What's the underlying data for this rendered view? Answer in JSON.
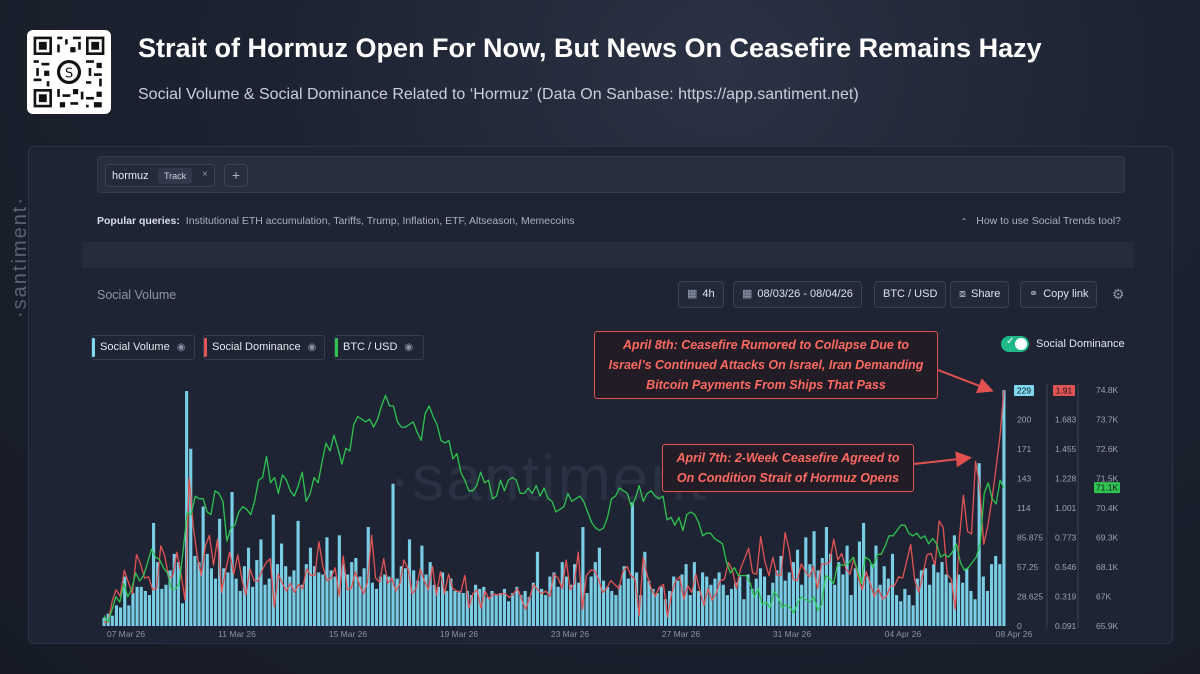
{
  "header": {
    "title": "Strait of Hormuz Open For Now, But News On Ceasefire Remains Hazy",
    "subtitle": "Social Volume & Social Dominance Related to ‘Hormuz’ (Data On Sanbase: https://app.santiment.net)"
  },
  "search": {
    "tag_word": "hormuz",
    "tag_track": "Track",
    "tag_close": "×",
    "add": "+"
  },
  "popular": {
    "label": "Popular queries:",
    "items": "Institutional ETH accumulation, Tariffs, Trump, Inflation, ETF, Altseason, Memecoins"
  },
  "howto": "How to use Social Trends tool?",
  "toolbar": {
    "section_label": "Social Volume",
    "interval": "4h",
    "date_range": "08/03/26 - 08/04/26",
    "pair": "BTC / USD",
    "share": "Share",
    "copy_link": "Copy link"
  },
  "legend": {
    "social_volume": "Social Volume",
    "social_dominance": "Social Dominance",
    "btc_usd": "BTC / USD",
    "toggle_label": "Social Dominance"
  },
  "brand": {
    "side": "·santiment·",
    "watermark": "·santiment·"
  },
  "annotations": {
    "april8": [
      "April 8th: Ceasefire Rumored to Collapse Due to",
      "Israel’s Continued Attacks On Israel, Iran Demanding",
      "Bitcoin Payments From Ships That Pass"
    ],
    "april7": [
      "April 7th: 2-Week Ceasefire Agreed to",
      "On Condition Strait of Hormuz Opens"
    ]
  },
  "colors": {
    "volume": "#7ed8ef",
    "dominance": "#e15454",
    "btc": "#2fc452",
    "accent_toggle": "#20b888"
  },
  "chart_data": {
    "type": "bar",
    "x_tick_labels": [
      "07 Mar 26",
      "11 Mar 26",
      "15 Mar 26",
      "19 Mar 26",
      "23 Mar 26",
      "27 Mar 26",
      "31 Mar 26",
      "04 Apr 26",
      "08 Apr 26"
    ],
    "axes": {
      "social_volume": {
        "ticks": [
          "229",
          "200",
          "171",
          "143",
          "114",
          "85.875",
          "57.25",
          "28.625",
          "0"
        ],
        "current": "229",
        "range": [
          0,
          229
        ]
      },
      "social_dominance": {
        "ticks": [
          "1.91",
          "1.683",
          "1.455",
          "1.228",
          "1.001",
          "0.773",
          "0.546",
          "0.319",
          "0.091"
        ],
        "current": "1.91",
        "range": [
          0.091,
          1.91
        ]
      },
      "btc_usd": {
        "ticks": [
          "74.8K",
          "73.7K",
          "72.6K",
          "71.5K",
          "70.4K",
          "69.3K",
          "68.1K",
          "67K",
          "65.9K"
        ],
        "current": "71.1K",
        "current_value": 71100,
        "range": [
          65900,
          74800
        ]
      }
    },
    "series": [
      {
        "name": "Social Volume",
        "type": "bar",
        "values": [
          8,
          12,
          10,
          20,
          18,
          48,
          20,
          32,
          38,
          38,
          34,
          30,
          100,
          62,
          36,
          40,
          54,
          70,
          62,
          22,
          228,
          172,
          68,
          62,
          116,
          70,
          56,
          46,
          104,
          56,
          52,
          130,
          46,
          34,
          58,
          76,
          38,
          64,
          84,
          40,
          46,
          108,
          60,
          80,
          58,
          48,
          54,
          102,
          40,
          60,
          76,
          58,
          52,
          50,
          86,
          54,
          48,
          88,
          60,
          50,
          62,
          66,
          48,
          56,
          96,
          42,
          36,
          48,
          50,
          48,
          138,
          46,
          58,
          56,
          84,
          54,
          44,
          78,
          50,
          62,
          40,
          38,
          52,
          34,
          46,
          34,
          34,
          32,
          34,
          30,
          40,
          36,
          38,
          28,
          34,
          30,
          32,
          36,
          24,
          32,
          38,
          30,
          34,
          28,
          42,
          72,
          36,
          30,
          48,
          52,
          38,
          62,
          48,
          40,
          60,
          42,
          96,
          32,
          48,
          62,
          76,
          44,
          38,
          34,
          30,
          40,
          58,
          46,
          120,
          52,
          30,
          72,
          44,
          36,
          32,
          38,
          26,
          34,
          48,
          44,
          50,
          60,
          30,
          62,
          34,
          52,
          48,
          40,
          46,
          52,
          40,
          30,
          36,
          42,
          48,
          26,
          50,
          36,
          46,
          56,
          48,
          30,
          42,
          54,
          68,
          44,
          52,
          62,
          74,
          40,
          86,
          60,
          92,
          54,
          66,
          96,
          70,
          40,
          62,
          50,
          78,
          30,
          56,
          82,
          100,
          48,
          60,
          78,
          40,
          58,
          46,
          70,
          30,
          24,
          36,
          30,
          20,
          46,
          54,
          56,
          40,
          60,
          52,
          62,
          50,
          42,
          88,
          50,
          42,
          56,
          34,
          26,
          158,
          48,
          34,
          60,
          68,
          60,
          229
        ]
      },
      {
        "name": "Social Dominance",
        "type": "line",
        "values": [
          0.12,
          0.12,
          0.28,
          0.37,
          0.32,
          0.52,
          0.43,
          0.34,
          0.64,
          0.57,
          0.46,
          0.47,
          0.37,
          0.38,
          0.71,
          0.63,
          0.46,
          0.48,
          0.66,
          0.49,
          0.29,
          1.23,
          0.86,
          0.63,
          0.48,
          0.71,
          0.79,
          0.56,
          0.76,
          0.35,
          0.52,
          0.66,
          0.49,
          0.64,
          0.45,
          0.33,
          0.53,
          0.44,
          0.44,
          0.52,
          0.58,
          0.61,
          0.24,
          0.49,
          0.42,
          0.36,
          0.42,
          0.35,
          0.41,
          0.38,
          0.53,
          0.48,
          0.48,
          0.74,
          0.55,
          0.44,
          0.46,
          0.54,
          0.32,
          0.63,
          0.37,
          0.38,
          0.51,
          0.41,
          0.34,
          0.43,
          0.79,
          0.46,
          0.43,
          0.61,
          0.42,
          0.46,
          0.36,
          0.42,
          0.6,
          0.53,
          0.34,
          0.38,
          0.53,
          0.44,
          0.37,
          0.55,
          0.33,
          0.51,
          0.34,
          0.49,
          0.38,
          0.36,
          0.35,
          0.48,
          0.23,
          0.34,
          0.37,
          0.23,
          0.36,
          0.3,
          0.34,
          0.33,
          0.34,
          0.34,
          0.31,
          0.34,
          0.38,
          0.3,
          0.22,
          0.31,
          0.41,
          0.37,
          0.34,
          0.36,
          0.32,
          0.49,
          0.46,
          0.38,
          0.6,
          0.37,
          0.42,
          0.66,
          0.22,
          0.48,
          0.52,
          0.52,
          0.45,
          0.35,
          0.38,
          0.44,
          0.41,
          0.38,
          0.51,
          0.55,
          0.48,
          0.45,
          0.17,
          0.62,
          0.48,
          0.38,
          0.32,
          0.39,
          0.41,
          0.16,
          0.34,
          0.44,
          0.47,
          0.3,
          0.4,
          0.35,
          0.49,
          0.36,
          0.25,
          0.38,
          0.29,
          0.34,
          0.44,
          0.45,
          0.58,
          0.52,
          0.38,
          0.53,
          0.61,
          0.69,
          0.5,
          0.49,
          0.78,
          0.59,
          0.48,
          0.62,
          0.48,
          0.48,
          0.81,
          0.68,
          0.45,
          0.44,
          0.57,
          0.51,
          0.47,
          0.55,
          0.38,
          0.57,
          0.57,
          0.58,
          0.76,
          0.6,
          0.65,
          0.53,
          0.49,
          0.61,
          0.47,
          0.37,
          0.51,
          0.42,
          0.32,
          0.38,
          0.3,
          0.32,
          0.4,
          0.4,
          0.47,
          0.46,
          0.59,
          0.72,
          0.44,
          0.35,
          0.49,
          0.64,
          0.65,
          0.56,
          0.9,
          0.85,
          0.49,
          0.45,
          0.22,
          0.77,
          1.1,
          0.82,
          0.8,
          1.36,
          1.16,
          0.72,
          0.86,
          1.06,
          1.3,
          1.55,
          1.91
        ]
      },
      {
        "name": "BTC / USD",
        "type": "line",
        "values": [
          66300,
          66050,
          66500,
          67000,
          66800,
          67500,
          67000,
          67300,
          67900,
          67600,
          67800,
          68300,
          68800,
          68500,
          68400,
          68100,
          67900,
          67300,
          67300,
          67500,
          68800,
          70200,
          70100,
          70800,
          70700,
          70700,
          70200,
          70100,
          71000,
          70900,
          70600,
          69100,
          69600,
          69700,
          70200,
          70400,
          70300,
          70100,
          70600,
          71400,
          71500,
          72300,
          71300,
          71500,
          70900,
          71600,
          71400,
          71000,
          70800,
          71200,
          71700,
          70600,
          70900,
          71500,
          71300,
          72100,
          72800,
          72500,
          73100,
          72600,
          72000,
          72600,
          72500,
          73500,
          73800,
          73700,
          73600,
          73700,
          73400,
          73700,
          74200,
          74600,
          74200,
          74200,
          73600,
          73400,
          73400,
          73500,
          73600,
          73200,
          72900,
          73900,
          74200,
          73800,
          73500,
          72900,
          72800,
          72900,
          72200,
          72400,
          71700,
          71400,
          71000,
          71000,
          71200,
          71700,
          71300,
          71400,
          70700,
          70800,
          71400,
          71000,
          71400,
          71500,
          71400,
          70900,
          70900,
          71100,
          70900,
          71200,
          70800,
          71100,
          70700,
          70600,
          70200,
          70300,
          70400,
          70900,
          70600,
          70700,
          70800,
          70600,
          70200,
          69800,
          69600,
          69500,
          69600,
          70000,
          70700,
          70800,
          71100,
          71000,
          70900,
          70400,
          70700,
          71200,
          70600,
          70900,
          71000,
          70800,
          70700,
          70800,
          69900,
          70000,
          69700,
          70000,
          69500,
          70100,
          70200,
          70100,
          69800,
          69300,
          69400,
          69400,
          69200,
          69100,
          69000,
          68300,
          67900,
          68100,
          67800,
          67800,
          67800,
          67500,
          67000,
          67300,
          66700,
          66800,
          66600,
          67200,
          67000,
          66600,
          66700,
          66600,
          66400,
          66800,
          67000,
          66900,
          66800,
          67000,
          66500,
          66700,
          67800,
          67700,
          67500,
          68200,
          68200,
          68200,
          68300,
          68500,
          68000,
          67500,
          68500,
          68400,
          68100,
          68600,
          68600,
          68900,
          69300,
          69300,
          69500,
          69700,
          69700,
          69400,
          69300,
          69400,
          69200,
          69300,
          69000,
          69200,
          69000,
          68500,
          68600,
          68500,
          68700,
          69000,
          68300,
          68000,
          68100,
          68300,
          68500,
          69000,
          70900,
          71300,
          70700,
          70500,
          71400,
          71100
        ]
      }
    ],
    "grid": true,
    "legend_position": "top-left"
  }
}
